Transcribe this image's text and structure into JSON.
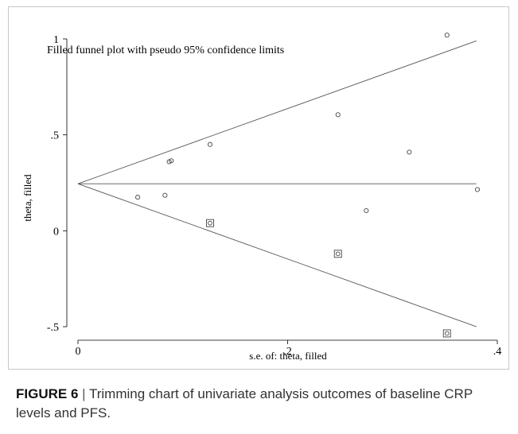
{
  "chart_data": {
    "type": "scatter",
    "title": "Filled funnel plot with pseudo 95% confidence limits",
    "xlabel": "s.e. of: theta, filled",
    "ylabel": "theta, filled",
    "xlim": [
      0,
      0.4
    ],
    "ylim": [
      -0.5,
      1
    ],
    "xticks": [
      0,
      0.2,
      0.4
    ],
    "xtick_labels": [
      "0",
      ".2",
      ".4"
    ],
    "yticks": [
      -0.5,
      0,
      0.5,
      1
    ],
    "ytick_labels": [
      "-.5",
      "0",
      ".5",
      "1"
    ],
    "pooled_estimate": 0.245,
    "funnel_max_se": 0.38,
    "grid": false,
    "series": [
      {
        "marker": "circle",
        "points": [
          {
            "x": 0.057,
            "y": 0.175
          },
          {
            "x": 0.083,
            "y": 0.185
          },
          {
            "x": 0.087,
            "y": 0.36
          },
          {
            "x": 0.089,
            "y": 0.365
          },
          {
            "x": 0.126,
            "y": 0.45
          },
          {
            "x": 0.248,
            "y": 0.605
          },
          {
            "x": 0.275,
            "y": 0.105
          },
          {
            "x": 0.316,
            "y": 0.41
          },
          {
            "x": 0.352,
            "y": 1.02
          },
          {
            "x": 0.381,
            "y": 0.215
          }
        ]
      },
      {
        "marker": "circle-in-square",
        "points": [
          {
            "x": 0.126,
            "y": 0.04
          },
          {
            "x": 0.248,
            "y": -0.12
          },
          {
            "x": 0.352,
            "y": -0.535
          }
        ]
      }
    ]
  },
  "caption": {
    "label": "FIGURE 6",
    "separator": "|",
    "text": "Trimming chart of univariate analysis outcomes of baseline CRP levels and PFS."
  }
}
